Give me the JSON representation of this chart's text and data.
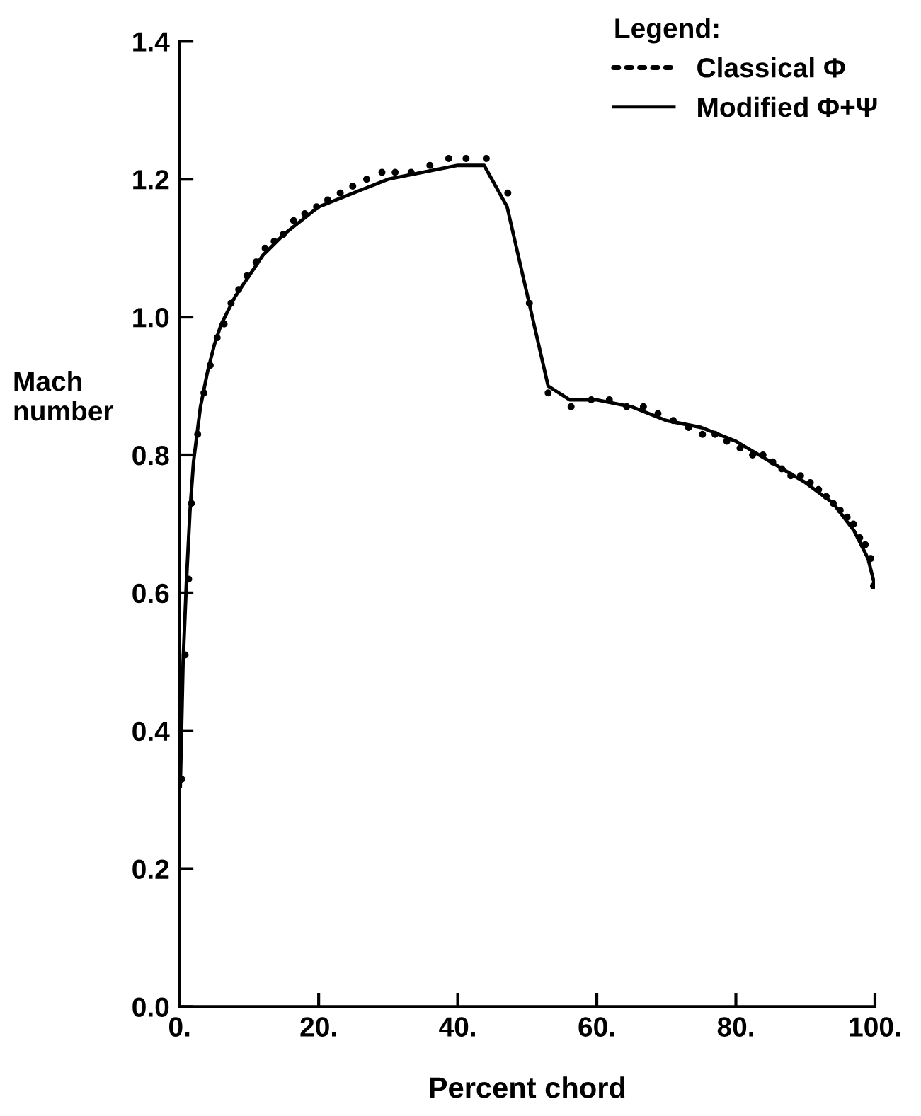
{
  "chart_data": {
    "type": "line",
    "xlabel": "Percent chord",
    "ylabel": "Mach\nnumber",
    "legend_title": "Legend:",
    "legend": "top right",
    "grid": false,
    "xlim": [
      0,
      100
    ],
    "ylim": [
      0,
      1.4
    ],
    "xticks": [
      {
        "value": 0,
        "label": "0."
      },
      {
        "value": 20,
        "label": "20."
      },
      {
        "value": 40,
        "label": "40."
      },
      {
        "value": 60,
        "label": "60."
      },
      {
        "value": 80,
        "label": "80."
      },
      {
        "value": 100,
        "label": "100."
      }
    ],
    "yticks": [
      {
        "value": 0,
        "label": "0.0"
      },
      {
        "value": 0.2,
        "label": "0.2"
      },
      {
        "value": 0.4,
        "label": "0.4"
      },
      {
        "value": 0.6,
        "label": "0.6"
      },
      {
        "value": 0.8,
        "label": "0.8"
      },
      {
        "value": 1.0,
        "label": "1.0"
      },
      {
        "value": 1.2,
        "label": "1.2"
      },
      {
        "value": 1.4,
        "label": "1.4"
      }
    ],
    "series": [
      {
        "name": "Classical Φ",
        "type": "scatter",
        "marker": "circle",
        "color": "#000000",
        "x": [
          0.3,
          0.8,
          1.3,
          1.7,
          2.6,
          3.5,
          4.4,
          5.4,
          6.4,
          7.4,
          8.5,
          9.7,
          11.0,
          12.3,
          13.6,
          14.9,
          16.4,
          18.0,
          19.7,
          21.3,
          23.1,
          24.9,
          26.9,
          29.1,
          31.0,
          33.3,
          36.0,
          38.7,
          41.2,
          44.1,
          47.2,
          50.3,
          53.0,
          56.3,
          59.2,
          61.8,
          64.3,
          66.7,
          68.8,
          71.0,
          73.2,
          75.2,
          77.0,
          78.7,
          80.6,
          82.4,
          83.9,
          85.3,
          86.6,
          87.9,
          89.3,
          90.7,
          91.9,
          93.0,
          94.0,
          95.0,
          96.0,
          96.9,
          97.8,
          98.6,
          99.4,
          99.8
        ],
        "values": [
          0.33,
          0.51,
          0.62,
          0.73,
          0.83,
          0.89,
          0.93,
          0.97,
          0.99,
          1.02,
          1.04,
          1.06,
          1.08,
          1.1,
          1.11,
          1.12,
          1.14,
          1.15,
          1.16,
          1.17,
          1.18,
          1.19,
          1.2,
          1.21,
          1.21,
          1.21,
          1.22,
          1.23,
          1.23,
          1.23,
          1.18,
          1.02,
          0.89,
          0.87,
          0.88,
          0.88,
          0.87,
          0.87,
          0.86,
          0.85,
          0.84,
          0.83,
          0.83,
          0.82,
          0.81,
          0.8,
          0.8,
          0.79,
          0.78,
          0.77,
          0.77,
          0.76,
          0.75,
          0.74,
          0.73,
          0.72,
          0.71,
          0.7,
          0.68,
          0.67,
          0.65,
          0.61
        ]
      },
      {
        "name": "Modified Φ+Ψ",
        "line_style": "solid",
        "marker": "none",
        "color": "#000000",
        "x": [
          0.1,
          0.5,
          1,
          1.5,
          2,
          3,
          4,
          5,
          6,
          8,
          10,
          12,
          15,
          20,
          25,
          30,
          35,
          40,
          43.8,
          47.1,
          53.0,
          56.1,
          60,
          65,
          70,
          75,
          80,
          85,
          90,
          94,
          97,
          99,
          100
        ],
        "values": [
          0.32,
          0.5,
          0.62,
          0.72,
          0.79,
          0.87,
          0.92,
          0.96,
          0.99,
          1.03,
          1.06,
          1.09,
          1.12,
          1.16,
          1.18,
          1.2,
          1.21,
          1.22,
          1.22,
          1.16,
          0.9,
          0.88,
          0.88,
          0.87,
          0.85,
          0.84,
          0.82,
          0.79,
          0.76,
          0.73,
          0.69,
          0.65,
          0.61
        ]
      }
    ]
  }
}
